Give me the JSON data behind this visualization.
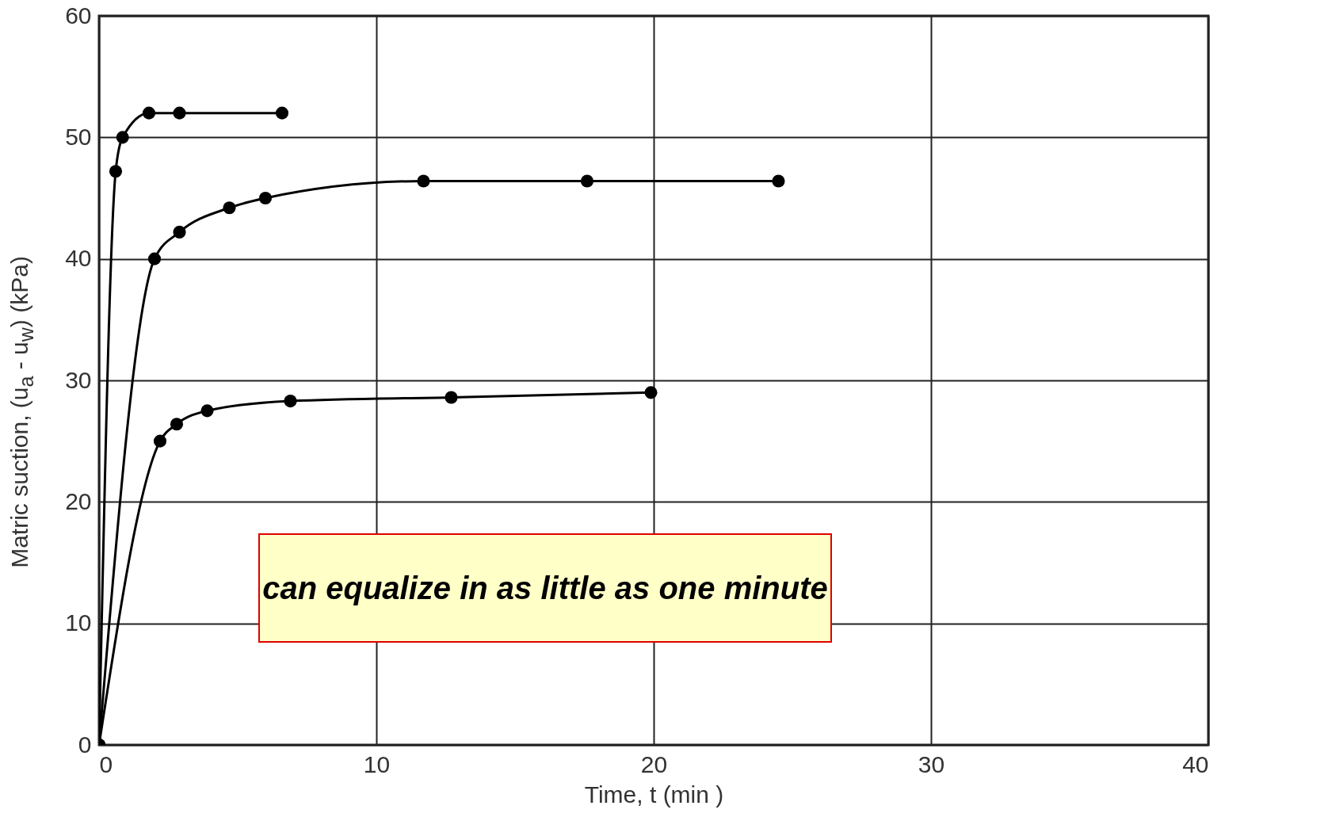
{
  "chart_data": {
    "type": "line",
    "xlabel": "Time, t (min )",
    "ylabel": "Matric suction, (u$_{a}$ - u$_{w}$) (kPa)",
    "xlim": [
      0,
      40
    ],
    "xticks": [
      0,
      10,
      20,
      30,
      40
    ],
    "ylim": [
      0,
      60
    ],
    "yticks": [
      0,
      10,
      20,
      30,
      40,
      50,
      60
    ],
    "grid": true,
    "marker": "circle",
    "line_style": "solid",
    "series": [
      {
        "color": "#000000",
        "x": [
          0,
          0.6,
          0.85,
          1.8,
          2.9,
          6.6
        ],
        "values": [
          0,
          47.2,
          50,
          52,
          52,
          52
        ]
      },
      {
        "color": "#000000",
        "x": [
          0,
          2,
          2.9,
          4.7,
          6,
          11.7,
          17.6,
          24.5
        ],
        "values": [
          0,
          40,
          42.2,
          44.2,
          45,
          46.4,
          46.4,
          46.4
        ]
      },
      {
        "color": "#000000",
        "x": [
          0,
          2.2,
          2.8,
          3.9,
          6.9,
          12.7,
          19.9
        ],
        "values": [
          0,
          25,
          26.4,
          27.5,
          28.3,
          28.6,
          29
        ]
      }
    ],
    "annotations": [
      "can equalize in as little as one minute"
    ]
  }
}
